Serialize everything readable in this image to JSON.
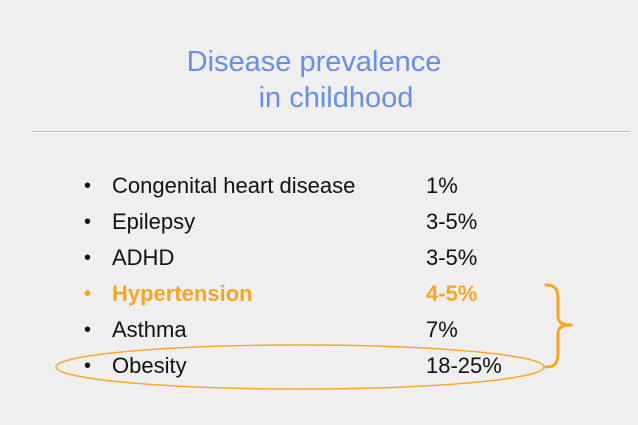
{
  "title": {
    "line1": "Disease prevalence",
    "line2": "in childhood"
  },
  "colors": {
    "title": "#6a8fe0",
    "highlight": "#f5a623",
    "text": "#111111",
    "background": "#efefef"
  },
  "items": [
    {
      "bullet": "•",
      "label": "Congenital heart disease",
      "value": "1%"
    },
    {
      "bullet": "•",
      "label": "Epilepsy",
      "value": "3-5%"
    },
    {
      "bullet": "•",
      "label": "ADHD",
      "value": "3-5%"
    },
    {
      "bullet": "•",
      "label": "Hypertension",
      "value": "4-5%"
    },
    {
      "bullet": "•",
      "label": "Asthma",
      "value": "7%"
    },
    {
      "bullet": "•",
      "label": "Obesity",
      "value": "18-25%"
    }
  ],
  "annotations": {
    "bracket_icon": "right-curly-brace-icon",
    "ellipse_icon": "highlight-ellipse-icon"
  }
}
